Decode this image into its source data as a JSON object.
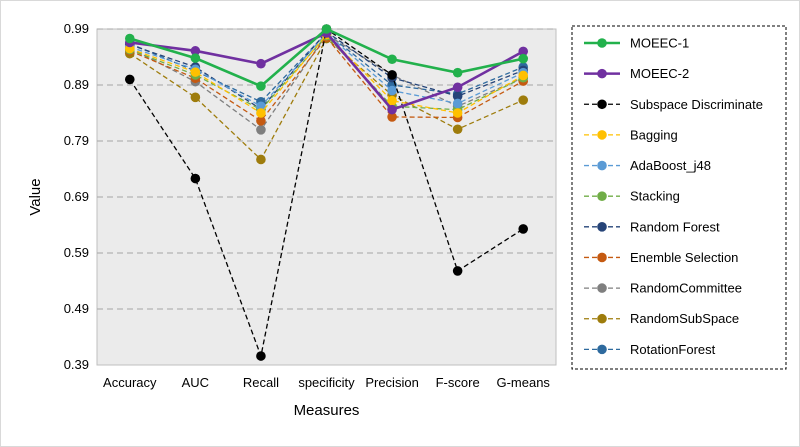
{
  "chart_data": {
    "type": "line",
    "title": "",
    "xlabel": "Measures",
    "ylabel": "Value",
    "categories": [
      "Accuracy",
      "AUC",
      "Recall",
      "specificity",
      "Precision",
      "F-score",
      "G-means"
    ],
    "yticks": [
      "0.39",
      "0.49",
      "0.59",
      "0.69",
      "0.79",
      "0.89",
      "0.99"
    ],
    "ylim": [
      0.39,
      0.99
    ],
    "grid": "horizontal dashed",
    "plot_background": "#ebebeb",
    "legend_position": "right",
    "series": [
      {
        "name": "MOEEC-1",
        "color": "#22b14c",
        "dashed": false,
        "values": [
          0.973,
          0.938,
          0.888,
          0.99,
          0.936,
          0.912,
          0.937
        ]
      },
      {
        "name": "MOEEC-2",
        "color": "#7030a0",
        "dashed": false,
        "values": [
          0.966,
          0.951,
          0.928,
          0.983,
          0.846,
          0.886,
          0.95
        ]
      },
      {
        "name": "Subspace Discriminate",
        "color": "#000000",
        "dashed": true,
        "values": [
          0.9,
          0.723,
          0.406,
          0.99,
          0.908,
          0.558,
          0.633
        ]
      },
      {
        "name": "Bagging",
        "color": "#ffc000",
        "dashed": true,
        "values": [
          0.955,
          0.913,
          0.84,
          0.98,
          0.862,
          0.84,
          0.907
        ]
      },
      {
        "name": "AdaBoost_j48",
        "color": "#5b9bd5",
        "dashed": true,
        "values": [
          0.958,
          0.918,
          0.852,
          0.982,
          0.88,
          0.857,
          0.912
        ]
      },
      {
        "name": "Stacking",
        "color": "#70ad47",
        "dashed": true,
        "values": [
          0.953,
          0.908,
          0.846,
          0.978,
          0.852,
          0.846,
          0.903
        ]
      },
      {
        "name": "Random Forest",
        "color": "#264478",
        "dashed": true,
        "values": [
          0.962,
          0.922,
          0.847,
          0.985,
          0.903,
          0.87,
          0.916
        ]
      },
      {
        "name": "Enemble Selection",
        "color": "#c55a11",
        "dashed": true,
        "values": [
          0.951,
          0.902,
          0.826,
          0.975,
          0.833,
          0.832,
          0.897
        ]
      },
      {
        "name": "RandomCommittee",
        "color": "#7f7f7f",
        "dashed": true,
        "values": [
          0.956,
          0.896,
          0.81,
          0.98,
          0.908,
          0.852,
          0.903
        ]
      },
      {
        "name": "RandomSubSpace",
        "color": "#9e7c0c",
        "dashed": true,
        "values": [
          0.946,
          0.868,
          0.757,
          0.973,
          0.872,
          0.811,
          0.863
        ]
      },
      {
        "name": "RotationForest",
        "color": "#2e6a9e",
        "dashed": true,
        "values": [
          0.964,
          0.915,
          0.86,
          0.983,
          0.89,
          0.874,
          0.922
        ]
      }
    ]
  }
}
